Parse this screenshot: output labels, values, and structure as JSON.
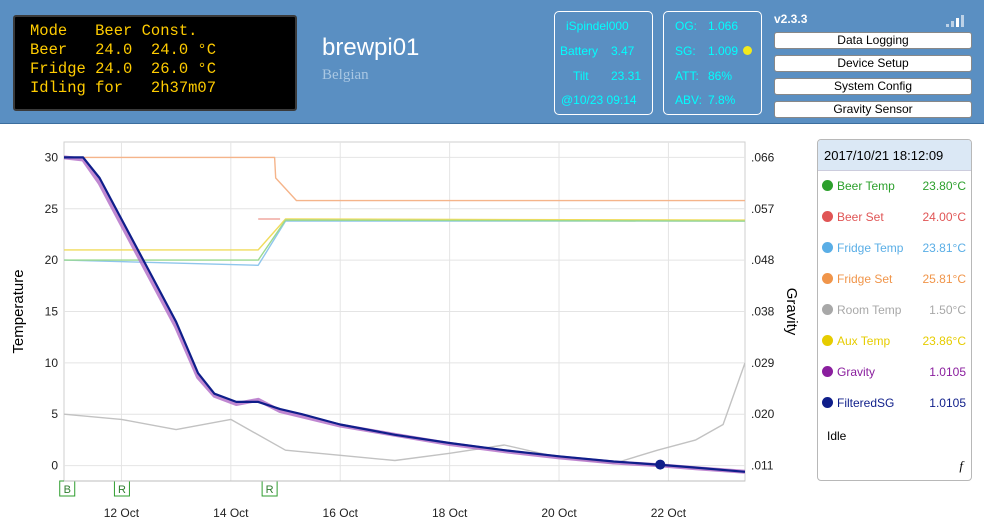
{
  "lcd": {
    "lines": [
      "Mode   Beer Const.",
      "Beer   24.0  24.0 °C",
      "Fridge 24.0  26.0 °C",
      "Idling for   2h37m07"
    ]
  },
  "header": {
    "title": "brewpi01",
    "subtitle": "Belgian",
    "version": "v2.3.3"
  },
  "ispindel": {
    "name": "iSpindel000",
    "battery_label": "Battery",
    "battery_value": "3.47",
    "tilt_label": "Tilt",
    "tilt_value": "23.31",
    "timestamp": "@10/23 09:14"
  },
  "gravity": {
    "og_label": "OG:",
    "og_value": "1.066",
    "sg_label": "SG:",
    "sg_value": "1.009",
    "att_label": "ATT:",
    "att_value": "86%",
    "abv_label": "ABV:",
    "abv_value": "7.8%",
    "indicator_color": "#f3ea1c"
  },
  "menu": {
    "data_logging": "Data Logging",
    "device_setup": "Device Setup",
    "system_config": "System Config",
    "gravity_sensor": "Gravity Sensor"
  },
  "legend": {
    "datetime": "2017/10/21 18:12:09",
    "items": [
      {
        "name": "Beer Temp",
        "value": "23.80°C",
        "color": "#2ca02c"
      },
      {
        "name": "Beer Set",
        "value": "24.00°C",
        "color": "#e05555"
      },
      {
        "name": "Fridge Temp",
        "value": "23.81°C",
        "color": "#5aaee6"
      },
      {
        "name": "Fridge Set",
        "value": "25.81°C",
        "color": "#f0954a"
      },
      {
        "name": "Room Temp",
        "value": "1.50°C",
        "color": "#a8a8a8"
      },
      {
        "name": "Aux Temp",
        "value": "23.86°C",
        "color": "#e6cc00"
      },
      {
        "name": "Gravity",
        "value": "1.0105",
        "color": "#8a1e9e"
      },
      {
        "name": "FilteredSG",
        "value": "1.0105",
        "color": "#0f1e8a"
      }
    ],
    "state": "Idle",
    "f_symbol": "f"
  },
  "chart_data": {
    "type": "line",
    "ylabel": "Temperature",
    "y2label": "Gravity",
    "ylim": [
      -1.5,
      31.5
    ],
    "y_ticks": [
      0,
      5,
      10,
      15,
      20,
      25,
      30
    ],
    "y2_ticks": [
      ".011",
      ".020",
      ".029",
      ".038",
      ".048",
      ".057",
      ".066"
    ],
    "x_ticks": [
      "12 Oct",
      "14 Oct",
      "16 Oct",
      "18 Oct",
      "20 Oct",
      "22 Oct"
    ],
    "x_tick_days": [
      12,
      14,
      16,
      18,
      20,
      22
    ],
    "xlim_days": [
      10.95,
      23.4
    ],
    "grid": true,
    "series": [
      {
        "name": "FilteredSG",
        "color": "#0f1e8a",
        "x_days": [
          10.95,
          11.3,
          11.6,
          12.0,
          12.5,
          13.0,
          13.4,
          13.7,
          14.1,
          14.5,
          14.9,
          15.3,
          16.0,
          17.0,
          18.0,
          19.0,
          20.0,
          21.0,
          21.8,
          22.5,
          23.4
        ],
        "y": [
          30,
          30,
          28,
          24,
          19,
          14,
          9,
          7,
          6.2,
          6.2,
          5.5,
          5,
          4,
          3,
          2.2,
          1.5,
          0.9,
          0.4,
          0.1,
          -0.2,
          -0.6
        ]
      },
      {
        "name": "Gravity",
        "color": "#b06ac6",
        "x_days": [
          10.95,
          11.3,
          11.6,
          12.0,
          12.5,
          13.0,
          13.4,
          13.7,
          14.1,
          14.5,
          14.9,
          15.3,
          16.0,
          17.0,
          18.0,
          19.0,
          20.0,
          21.0,
          21.8,
          22.5,
          23.4
        ],
        "y": [
          30,
          29.8,
          27.5,
          23.5,
          18.5,
          13.5,
          8.6,
          6.8,
          6.0,
          6.4,
          5.3,
          4.8,
          3.9,
          3.0,
          2.1,
          1.4,
          0.8,
          0.3,
          0.05,
          -0.25,
          -0.6
        ]
      },
      {
        "name": "Fridge Set",
        "color": "#f5b48a",
        "x_days": [
          10.95,
          14.8,
          14.82,
          15.2,
          23.4
        ],
        "y": [
          30,
          30,
          28,
          25.8,
          25.8
        ]
      },
      {
        "name": "Beer Set",
        "color": "#f0a9a0",
        "x_days": [
          14.5,
          14.9
        ],
        "y": [
          24,
          24
        ]
      },
      {
        "name": "Beer Temp",
        "color": "#9bd98f",
        "x_days": [
          10.95,
          14.5,
          15.0,
          23.4
        ],
        "y": [
          20,
          20,
          23.9,
          23.8
        ]
      },
      {
        "name": "Aux Temp",
        "color": "#f0dc5c",
        "x_days": [
          10.95,
          14.5,
          15.0,
          23.4
        ],
        "y": [
          21,
          21,
          24,
          23.9
        ]
      },
      {
        "name": "Fridge Temp",
        "color": "#8fc6ec",
        "x_days": [
          10.95,
          14.5,
          15.0,
          23.4
        ],
        "y": [
          20,
          19.5,
          23.8,
          23.8
        ]
      },
      {
        "name": "Room Temp",
        "color": "#c2c2c2",
        "x_days": [
          10.95,
          12.0,
          13.0,
          14.0,
          15.0,
          16.0,
          17.0,
          18.0,
          19.0,
          20.0,
          21.0,
          21.8,
          22.5,
          23.0,
          23.4
        ],
        "y": [
          5,
          4.5,
          3.5,
          4.5,
          1.5,
          1.0,
          0.5,
          1.2,
          2.0,
          0.8,
          0.2,
          1.5,
          2.5,
          4,
          10
        ]
      }
    ],
    "markers": [
      {
        "label": "B",
        "day": 11.0
      },
      {
        "label": "R",
        "day": 12.0
      },
      {
        "label": "R",
        "day": 14.7
      }
    ],
    "current_point": {
      "day": 21.85,
      "y": 0.1
    }
  }
}
